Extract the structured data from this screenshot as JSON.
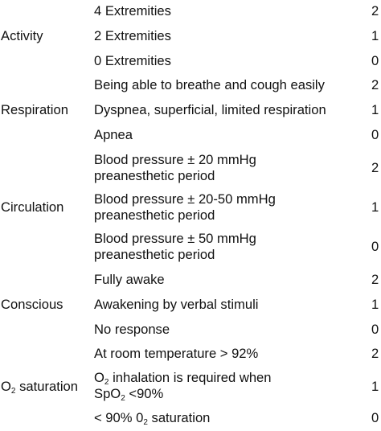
{
  "rows": [
    {
      "parameter": "",
      "criterion": "4 Extremities",
      "score": "2"
    },
    {
      "parameter": "Activity",
      "criterion": "2 Extremities",
      "score": "1"
    },
    {
      "parameter": "",
      "criterion": "0 Extremities",
      "score": "0"
    },
    {
      "parameter": "",
      "criterion": "Being able to breathe and cough easily",
      "score": "2"
    },
    {
      "parameter": "Respiration",
      "criterion": "Dyspnea, superficial, limited respiration",
      "score": "1"
    },
    {
      "parameter": "",
      "criterion": "Apnea",
      "score": "0"
    },
    {
      "parameter": "",
      "criterion_line1": "Blood pressure ± 20 mmHg",
      "criterion_line2": "preanesthetic period",
      "score": "2"
    },
    {
      "parameter": "Circulation",
      "criterion_line1": "Blood pressure ± 20-50 mmHg",
      "criterion_line2": "preanesthetic period",
      "score": "1"
    },
    {
      "parameter": "",
      "criterion_line1": "Blood pressure ± 50 mmHg",
      "criterion_line2": "preanesthetic period",
      "score": "0"
    },
    {
      "parameter": "",
      "criterion": "Fully awake",
      "score": "2"
    },
    {
      "parameter": "Conscious",
      "criterion": "Awakening by verbal stimuli",
      "score": "1"
    },
    {
      "parameter": "",
      "criterion": "No response",
      "score": "0"
    },
    {
      "parameter": "",
      "criterion": "At room temperature > 92%",
      "score": "2"
    },
    {
      "parameter_main": "O",
      "parameter_sub": "2",
      "parameter_rest": " saturation",
      "criterion_line1_main": "O",
      "criterion_line1_sub": "2",
      "criterion_line1_rest": " inhalation is required when",
      "criterion_line2_main": "SpO",
      "criterion_line2_sub": "2",
      "criterion_line2_rest": " <90%",
      "score": "1"
    },
    {
      "parameter": "",
      "criterion": "< 90% 0",
      "criterion_sub": "2",
      "criterion_rest": " saturation",
      "score": "0"
    }
  ]
}
